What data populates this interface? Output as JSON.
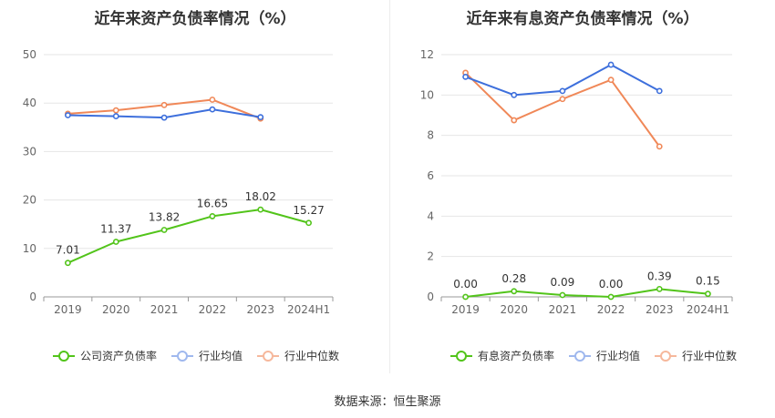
{
  "source": "数据来源：恒生聚源",
  "chart_data": [
    {
      "type": "line",
      "title": "近年来资产负债率情况（%）",
      "categories": [
        "2019",
        "2020",
        "2021",
        "2022",
        "2023",
        "2024H1"
      ],
      "ylim": [
        0,
        50
      ],
      "yticks": [
        0,
        10,
        20,
        30,
        40,
        50
      ],
      "grid": true,
      "legend_position": "bottom",
      "series": [
        {
          "name": "公司资产负债率",
          "color": "#52c41a",
          "labeled": true,
          "values": [
            7.01,
            11.37,
            13.82,
            16.65,
            18.02,
            15.27
          ],
          "labels": [
            "7.01",
            "11.37",
            "13.82",
            "16.65",
            "18.02",
            "15.27"
          ]
        },
        {
          "name": "行业均值",
          "color": "#3d6fdc",
          "labeled": false,
          "values": [
            37.5,
            37.3,
            37.0,
            38.7,
            37.1,
            null
          ]
        },
        {
          "name": "行业中位数",
          "color": "#f08858",
          "labeled": false,
          "values": [
            37.8,
            38.5,
            39.6,
            40.7,
            36.8,
            null
          ]
        }
      ]
    },
    {
      "type": "line",
      "title": "近年来有息资产负债率情况（%）",
      "categories": [
        "2019",
        "2020",
        "2021",
        "2022",
        "2023",
        "2024H1"
      ],
      "ylim": [
        0,
        12
      ],
      "yticks": [
        0,
        2,
        4,
        6,
        8,
        10,
        12
      ],
      "grid": true,
      "legend_position": "bottom",
      "series": [
        {
          "name": "有息资产负债率",
          "color": "#52c41a",
          "labeled": true,
          "values": [
            0.0,
            0.28,
            0.09,
            0.0,
            0.39,
            0.15
          ],
          "labels": [
            "0.00",
            "0.28",
            "0.09",
            "0.00",
            "0.39",
            "0.15"
          ]
        },
        {
          "name": "行业均值",
          "color": "#3d6fdc",
          "labeled": false,
          "values": [
            10.9,
            10.0,
            10.2,
            11.5,
            10.2,
            null
          ]
        },
        {
          "name": "行业中位数",
          "color": "#f08858",
          "labeled": false,
          "values": [
            11.1,
            8.75,
            9.8,
            10.75,
            7.45,
            null
          ]
        }
      ]
    }
  ]
}
